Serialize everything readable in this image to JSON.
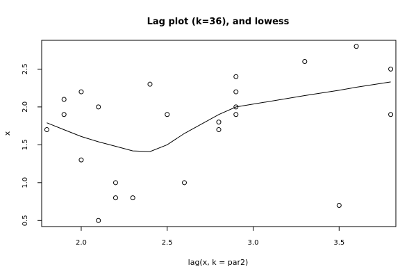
{
  "chart_data": {
    "type": "scatter",
    "title": "Lag plot (k=36), and lowess",
    "xlabel": "lag(x, k = par2)",
    "ylabel": "x",
    "xlim": [
      1.77,
      3.83
    ],
    "ylim": [
      0.42,
      2.88
    ],
    "xticks": [
      {
        "value": 2.0,
        "label": "2.0"
      },
      {
        "value": 2.5,
        "label": "2.5"
      },
      {
        "value": 3.0,
        "label": "3.0"
      },
      {
        "value": 3.5,
        "label": "3.5"
      }
    ],
    "yticks": [
      {
        "value": 0.5,
        "label": "0.5"
      },
      {
        "value": 1.0,
        "label": "1.0"
      },
      {
        "value": 1.5,
        "label": "1.5"
      },
      {
        "value": 2.0,
        "label": "2.0"
      },
      {
        "value": 2.5,
        "label": "2.5"
      }
    ],
    "points": [
      {
        "x": 1.8,
        "y": 1.7
      },
      {
        "x": 1.9,
        "y": 2.1
      },
      {
        "x": 1.9,
        "y": 1.9
      },
      {
        "x": 2.0,
        "y": 2.2
      },
      {
        "x": 2.0,
        "y": 1.3
      },
      {
        "x": 2.1,
        "y": 2.0
      },
      {
        "x": 2.1,
        "y": 0.5
      },
      {
        "x": 2.2,
        "y": 1.0
      },
      {
        "x": 2.2,
        "y": 0.8
      },
      {
        "x": 2.3,
        "y": 0.8
      },
      {
        "x": 2.4,
        "y": 2.3
      },
      {
        "x": 2.5,
        "y": 1.9
      },
      {
        "x": 2.6,
        "y": 1.0
      },
      {
        "x": 2.8,
        "y": 1.8
      },
      {
        "x": 2.8,
        "y": 1.7
      },
      {
        "x": 2.9,
        "y": 2.4
      },
      {
        "x": 2.9,
        "y": 2.2
      },
      {
        "x": 2.9,
        "y": 2.0
      },
      {
        "x": 2.9,
        "y": 1.9
      },
      {
        "x": 3.3,
        "y": 2.6
      },
      {
        "x": 3.5,
        "y": 0.7
      },
      {
        "x": 3.6,
        "y": 2.8
      },
      {
        "x": 3.8,
        "y": 2.5
      },
      {
        "x": 3.8,
        "y": 1.9
      }
    ],
    "lowess": [
      {
        "x": 1.8,
        "y": 1.79
      },
      {
        "x": 1.9,
        "y": 1.7
      },
      {
        "x": 2.0,
        "y": 1.61
      },
      {
        "x": 2.1,
        "y": 1.54
      },
      {
        "x": 2.2,
        "y": 1.48
      },
      {
        "x": 2.3,
        "y": 1.42
      },
      {
        "x": 2.4,
        "y": 1.41
      },
      {
        "x": 2.5,
        "y": 1.5
      },
      {
        "x": 2.6,
        "y": 1.65
      },
      {
        "x": 2.8,
        "y": 1.9
      },
      {
        "x": 2.9,
        "y": 2.0
      },
      {
        "x": 3.3,
        "y": 2.15
      },
      {
        "x": 3.5,
        "y": 2.22
      },
      {
        "x": 3.6,
        "y": 2.26
      },
      {
        "x": 3.8,
        "y": 2.33
      }
    ],
    "grid": false,
    "colors": {
      "points": "#000000",
      "line": "#000000",
      "axes": "#000000"
    }
  }
}
